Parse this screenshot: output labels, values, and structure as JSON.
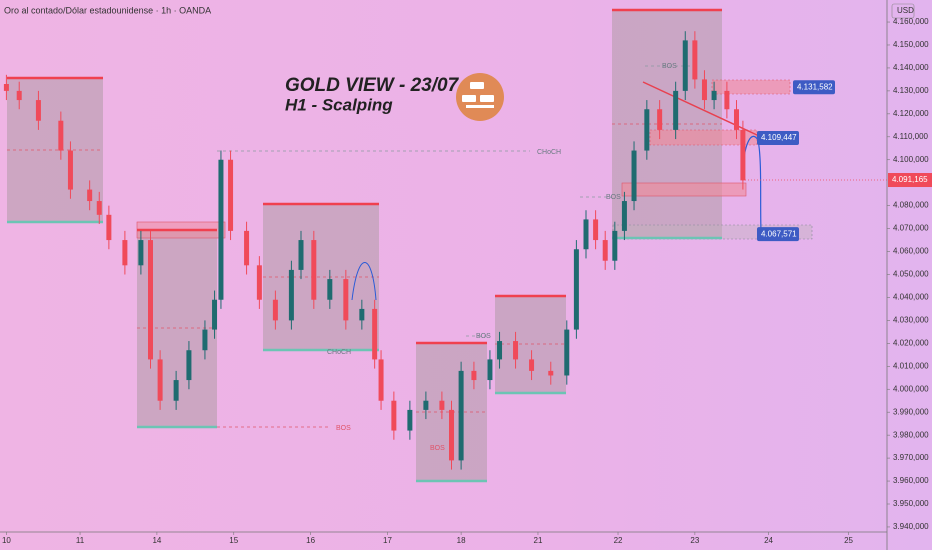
{
  "chart_data": {
    "type": "candlestick",
    "title": "Oro al contado/Dólar estadounidense · 1h · OANDA",
    "headline": "GOLD VIEW - 23/07",
    "subheadline": "H1 - Scalping",
    "currency": "USD",
    "up_color": "#1f6b70",
    "down_color": "#f04a5a",
    "x": [
      2,
      6,
      12,
      19,
      22,
      28,
      31,
      34,
      39,
      44,
      47,
      50,
      55,
      59,
      64,
      67,
      69,
      72,
      77,
      81,
      86,
      91,
      94,
      98,
      103,
      108,
      113,
      117,
      119,
      123,
      128,
      133,
      138,
      141,
      144,
      148,
      153,
      156,
      161,
      166,
      172,
      177,
      180,
      183,
      186,
      189,
      192,
      195,
      198,
      202,
      206,
      211,
      214,
      217,
      220,
      223,
      227,
      230,
      232
    ],
    "open": [
      4133000,
      4130000,
      4126000,
      4117000,
      4104000,
      4087000,
      4082000,
      4076000,
      4065000,
      4054000,
      4065000,
      4013000,
      3995000,
      4004000,
      4017000,
      4026000,
      4039000,
      4100000,
      4069000,
      4054000,
      4039000,
      4030000,
      4052000,
      4065000,
      4039000,
      4048000,
      4030000,
      4035000,
      4013000,
      3995000,
      3982000,
      3991000,
      3995000,
      3991000,
      3969000,
      4008000,
      4004000,
      4013000,
      4021000,
      4013000,
      4008000,
      4006000,
      4026000,
      4061000,
      4074000,
      4065000,
      4056000,
      4069000,
      4082000,
      4104000,
      4122000,
      4113000,
      4130000,
      4152000,
      4135000,
      4126000,
      4130000,
      4122000,
      4113000
    ],
    "high": [
      4137000,
      4134000,
      4130000,
      4121000,
      4108000,
      4091000,
      4086000,
      4080000,
      4069000,
      4069000,
      4069000,
      4017000,
      4008000,
      4021000,
      4030000,
      4043000,
      4104000,
      4104000,
      4073000,
      4058000,
      4043000,
      4056000,
      4069000,
      4069000,
      4052000,
      4052000,
      4039000,
      4039000,
      4017000,
      3999000,
      3995000,
      3999000,
      3999000,
      3995000,
      4012000,
      4012000,
      4017000,
      4025000,
      4025000,
      4017000,
      4012000,
      4030000,
      4065000,
      4078000,
      4078000,
      4069000,
      4073000,
      4086000,
      4108000,
      4126000,
      4126000,
      4134000,
      4156000,
      4156000,
      4139000,
      4134000,
      4134000,
      4126000,
      4117000
    ],
    "low": [
      4126000,
      4122000,
      4113000,
      4100000,
      4083000,
      4078000,
      4072000,
      4061000,
      4050000,
      4050000,
      4009000,
      3991000,
      3991000,
      4000000,
      4013000,
      4022000,
      4035000,
      4065000,
      4050000,
      4035000,
      4026000,
      4026000,
      4048000,
      4035000,
      4035000,
      4026000,
      4026000,
      4009000,
      3991000,
      3978000,
      3978000,
      3987000,
      3987000,
      3965000,
      3965000,
      4000000,
      4000000,
      4009000,
      4009000,
      4004000,
      4002000,
      4002000,
      4022000,
      4057000,
      4061000,
      4052000,
      4052000,
      4065000,
      4078000,
      4100000,
      4109000,
      4109000,
      4126000,
      4131000,
      4122000,
      4122000,
      4118000,
      4109000,
      4087000
    ],
    "close": [
      4130000,
      4126000,
      4117000,
      4104000,
      4087000,
      4082000,
      4076000,
      4065000,
      4054000,
      4065000,
      4013000,
      3995000,
      4004000,
      4017000,
      4026000,
      4039000,
      4100000,
      4069000,
      4054000,
      4039000,
      4030000,
      4052000,
      4065000,
      4039000,
      4048000,
      4030000,
      4035000,
      4013000,
      3995000,
      3982000,
      3991000,
      3995000,
      3991000,
      3969000,
      4008000,
      4004000,
      4013000,
      4021000,
      4013000,
      4008000,
      4006000,
      4026000,
      4061000,
      4074000,
      4065000,
      4056000,
      4069000,
      4082000,
      4104000,
      4122000,
      4113000,
      4130000,
      4152000,
      4135000,
      4126000,
      4130000,
      4122000,
      4113000,
      4091000
    ],
    "xlim": [
      0,
      277
    ],
    "xticks": [
      {
        "value": 2,
        "label": "10"
      },
      {
        "value": 25,
        "label": "11"
      },
      {
        "value": 49,
        "label": "14"
      },
      {
        "value": 73,
        "label": "15"
      },
      {
        "value": 97,
        "label": "16"
      },
      {
        "value": 121,
        "label": "17"
      },
      {
        "value": 144,
        "label": "18"
      },
      {
        "value": 168,
        "label": "21"
      },
      {
        "value": 193,
        "label": "22"
      },
      {
        "value": 217,
        "label": "23"
      },
      {
        "value": 240,
        "label": "24"
      },
      {
        "value": 265,
        "label": "25"
      }
    ],
    "ylim": [
      3937800,
      4169600
    ],
    "yticks": [
      {
        "value": 3940000,
        "label": "3.940,000"
      },
      {
        "value": 3950000,
        "label": "3.950,000"
      },
      {
        "value": 3960000,
        "label": "3.960,000"
      },
      {
        "value": 3970000,
        "label": "3.970,000"
      },
      {
        "value": 3980000,
        "label": "3.980,000"
      },
      {
        "value": 3990000,
        "label": "3.990,000"
      },
      {
        "value": 4000000,
        "label": "4.000,000"
      },
      {
        "value": 4010000,
        "label": "4.010,000"
      },
      {
        "value": 4020000,
        "label": "4.020,000"
      },
      {
        "value": 4030000,
        "label": "4.030,000"
      },
      {
        "value": 4040000,
        "label": "4.040,000"
      },
      {
        "value": 4050000,
        "label": "4.050,000"
      },
      {
        "value": 4060000,
        "label": "4.060,000"
      },
      {
        "value": 4070000,
        "label": "4.070,000"
      },
      {
        "value": 4080000,
        "label": "4.080,000"
      },
      {
        "value": 4100000,
        "label": "4.100,000"
      },
      {
        "value": 4110000,
        "label": "4.110,000"
      },
      {
        "value": 4120000,
        "label": "4.120,000"
      },
      {
        "value": 4130000,
        "label": "4.130,000"
      },
      {
        "value": 4140000,
        "label": "4.140,000"
      },
      {
        "value": 4150000,
        "label": "4.150,000"
      },
      {
        "value": 4160000,
        "label": "4.160,000"
      }
    ],
    "price_labels": [
      {
        "value": 4131582,
        "label": "4.131,582"
      },
      {
        "value": 4109447,
        "label": "4.109,447"
      },
      {
        "value": 4067571,
        "label": "4.067,571"
      }
    ],
    "last_price": {
      "value": 4091165,
      "label": "4.091,165"
    },
    "annotations": [
      "CHoCH",
      "BOS",
      "CHoCH",
      "BOS",
      "BOS",
      "BOS",
      "BOS"
    ]
  }
}
